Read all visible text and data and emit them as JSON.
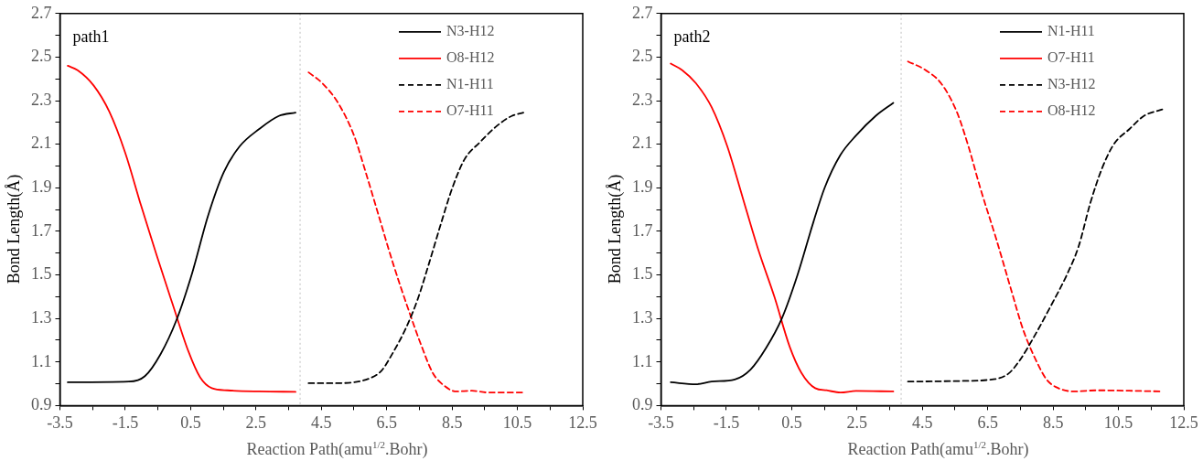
{
  "chart_data": [
    {
      "type": "line",
      "xlabel": "Reaction Path(amu$^{1/2}$.Bohr)",
      "ylabel": "Bond Length(Å)",
      "annotations": [
        "path1"
      ],
      "legend": "top right",
      "grid": false,
      "marker": "none",
      "xlim": [
        -3.5,
        12.5
      ],
      "xticks": [
        -3.5,
        {
          "value": -2.5,
          "label": null
        },
        -1.5,
        {
          "value": -0.5,
          "label": null
        },
        0.5,
        {
          "value": 1.5,
          "label": null
        },
        2.5,
        {
          "value": 3.5,
          "label": null
        },
        4.5,
        {
          "value": 5.5,
          "label": null
        },
        6.5,
        {
          "value": 7.5,
          "label": null
        },
        8.5,
        {
          "value": 9.5,
          "label": null
        },
        10.5,
        {
          "value": 11.5,
          "label": null
        },
        12.5
      ],
      "ylim": [
        0.9,
        2.7
      ],
      "yticks": [
        0.9,
        {
          "value": 1.0,
          "label": null
        },
        1.1,
        {
          "value": 1.2,
          "label": null
        },
        1.3,
        {
          "value": 1.4,
          "label": null
        },
        1.5,
        {
          "value": 1.6,
          "label": null
        },
        1.7,
        {
          "value": 1.8,
          "label": null
        },
        1.9,
        {
          "value": 2.0,
          "label": null
        },
        2.1,
        {
          "value": 2.2,
          "label": null
        },
        2.3,
        {
          "value": 2.4,
          "label": null
        },
        2.5,
        {
          "value": 2.6,
          "label": null
        },
        2.7
      ],
      "ref_lines": [
        {
          "axis": "x",
          "value": 3.85,
          "label": null,
          "color": "#bfbfbf",
          "line_style": "dotted"
        }
      ],
      "series": [
        {
          "name": "N3-H12",
          "color": "#000000",
          "line_style": "solid",
          "x": [
            -3.26,
            -1.39,
            -0.9,
            -0.42,
            0.06,
            0.55,
            1.03,
            1.51,
            2.0,
            2.6,
            3.2,
            3.71
          ],
          "values": [
            1.007,
            1.01,
            1.035,
            1.136,
            1.29,
            1.51,
            1.77,
            1.97,
            2.09,
            2.17,
            2.23,
            2.245
          ]
        },
        {
          "name": "O8-H12",
          "color": "#ff0000",
          "line_style": "solid",
          "x": [
            -3.26,
            -2.96,
            -2.47,
            -1.99,
            -1.5,
            -1.02,
            -0.54,
            -0.06,
            0.43,
            0.79,
            1.15,
            1.63,
            2.6,
            3.71
          ],
          "values": [
            2.46,
            2.44,
            2.37,
            2.25,
            2.06,
            1.82,
            1.59,
            1.37,
            1.15,
            1.03,
            0.98,
            0.97,
            0.965,
            0.963
          ]
        },
        {
          "name": "N1-H11",
          "color": "#000000",
          "line_style": "dashed",
          "x": [
            4.11,
            5.01,
            5.98,
            6.34,
            6.7,
            7.07,
            7.43,
            7.79,
            8.15,
            8.51,
            8.88,
            9.36,
            9.84,
            10.33,
            10.69
          ],
          "values": [
            1.003,
            1.003,
            1.025,
            1.06,
            1.145,
            1.25,
            1.38,
            1.55,
            1.73,
            1.9,
            2.03,
            2.11,
            2.18,
            2.23,
            2.245
          ]
        },
        {
          "name": "O7-H11",
          "color": "#ff0000",
          "line_style": "dashed",
          "x": [
            4.11,
            4.53,
            5.01,
            5.5,
            5.86,
            6.22,
            6.7,
            7.19,
            7.55,
            7.91,
            8.27,
            8.63,
            9.11,
            9.6,
            10.69
          ],
          "values": [
            2.43,
            2.38,
            2.29,
            2.14,
            1.97,
            1.79,
            1.55,
            1.33,
            1.18,
            1.05,
            0.99,
            0.965,
            0.968,
            0.96,
            0.96
          ]
        }
      ]
    },
    {
      "type": "line",
      "xlabel": "Reaction Path(amu$^{1/2}$.Bohr)",
      "ylabel": "Bond Length(Å)",
      "annotations": [
        "path2"
      ],
      "legend": "top right",
      "grid": false,
      "marker": "none",
      "xlim": [
        -3.5,
        12.5
      ],
      "xticks": [
        -3.5,
        {
          "value": -2.5,
          "label": null
        },
        -1.5,
        {
          "value": -0.5,
          "label": null
        },
        0.5,
        {
          "value": 1.5,
          "label": null
        },
        2.5,
        {
          "value": 3.5,
          "label": null
        },
        4.5,
        {
          "value": 5.5,
          "label": null
        },
        6.5,
        {
          "value": 7.5,
          "label": null
        },
        8.5,
        {
          "value": 9.5,
          "label": null
        },
        10.5,
        {
          "value": 11.5,
          "label": null
        },
        12.5
      ],
      "ylim": [
        0.9,
        2.7
      ],
      "yticks": [
        0.9,
        {
          "value": 1.0,
          "label": null
        },
        1.1,
        {
          "value": 1.2,
          "label": null
        },
        1.3,
        {
          "value": 1.4,
          "label": null
        },
        1.5,
        {
          "value": 1.6,
          "label": null
        },
        1.7,
        {
          "value": 1.8,
          "label": null
        },
        1.9,
        {
          "value": 2.0,
          "label": null
        },
        2.1,
        {
          "value": 2.2,
          "label": null
        },
        2.3,
        {
          "value": 2.4,
          "label": null
        },
        2.5,
        {
          "value": 2.6,
          "label": null
        },
        2.7
      ],
      "ref_lines": [
        {
          "axis": "x",
          "value": 3.85,
          "label": null,
          "color": "#bfbfbf",
          "line_style": "dotted"
        }
      ],
      "series": [
        {
          "name": "N1-H11",
          "color": "#000000",
          "line_style": "solid",
          "x": [
            -3.2,
            -2.43,
            -1.95,
            -1.24,
            -0.76,
            -0.28,
            0.2,
            0.68,
            1.16,
            1.51,
            1.99,
            2.47,
            3.07,
            3.61
          ],
          "values": [
            1.007,
            0.998,
            1.01,
            1.02,
            1.065,
            1.165,
            1.3,
            1.5,
            1.74,
            1.9,
            2.05,
            2.14,
            2.23,
            2.29
          ]
        },
        {
          "name": "O7-H11",
          "color": "#ff0000",
          "line_style": "solid",
          "x": [
            -3.2,
            -2.85,
            -2.43,
            -1.95,
            -1.47,
            -0.99,
            -0.51,
            -0.03,
            0.44,
            0.8,
            1.22,
            1.57,
            1.99,
            2.47,
            3.61
          ],
          "values": [
            2.47,
            2.44,
            2.38,
            2.27,
            2.09,
            1.85,
            1.61,
            1.4,
            1.17,
            1.05,
            0.98,
            0.97,
            0.96,
            0.967,
            0.965
          ]
        },
        {
          "name": "N3-H12",
          "color": "#000000",
          "line_style": "dashed",
          "x": [
            4.06,
            5.68,
            6.52,
            7.12,
            7.49,
            7.97,
            8.44,
            8.92,
            9.28,
            9.64,
            10.0,
            10.36,
            10.84,
            11.28,
            11.84
          ],
          "values": [
            1.01,
            1.013,
            1.018,
            1.045,
            1.11,
            1.23,
            1.36,
            1.5,
            1.63,
            1.83,
            1.99,
            2.1,
            2.17,
            2.23,
            2.26
          ]
        },
        {
          "name": "O8-H12",
          "color": "#ff0000",
          "line_style": "dashed",
          "x": [
            4.06,
            4.6,
            5.07,
            5.55,
            5.91,
            6.27,
            6.75,
            7.22,
            7.58,
            7.94,
            8.3,
            8.66,
            9.14,
            9.85,
            11.84
          ],
          "values": [
            2.48,
            2.44,
            2.38,
            2.25,
            2.09,
            1.9,
            1.67,
            1.43,
            1.25,
            1.12,
            1.02,
            0.98,
            0.965,
            0.97,
            0.965
          ]
        }
      ]
    }
  ]
}
